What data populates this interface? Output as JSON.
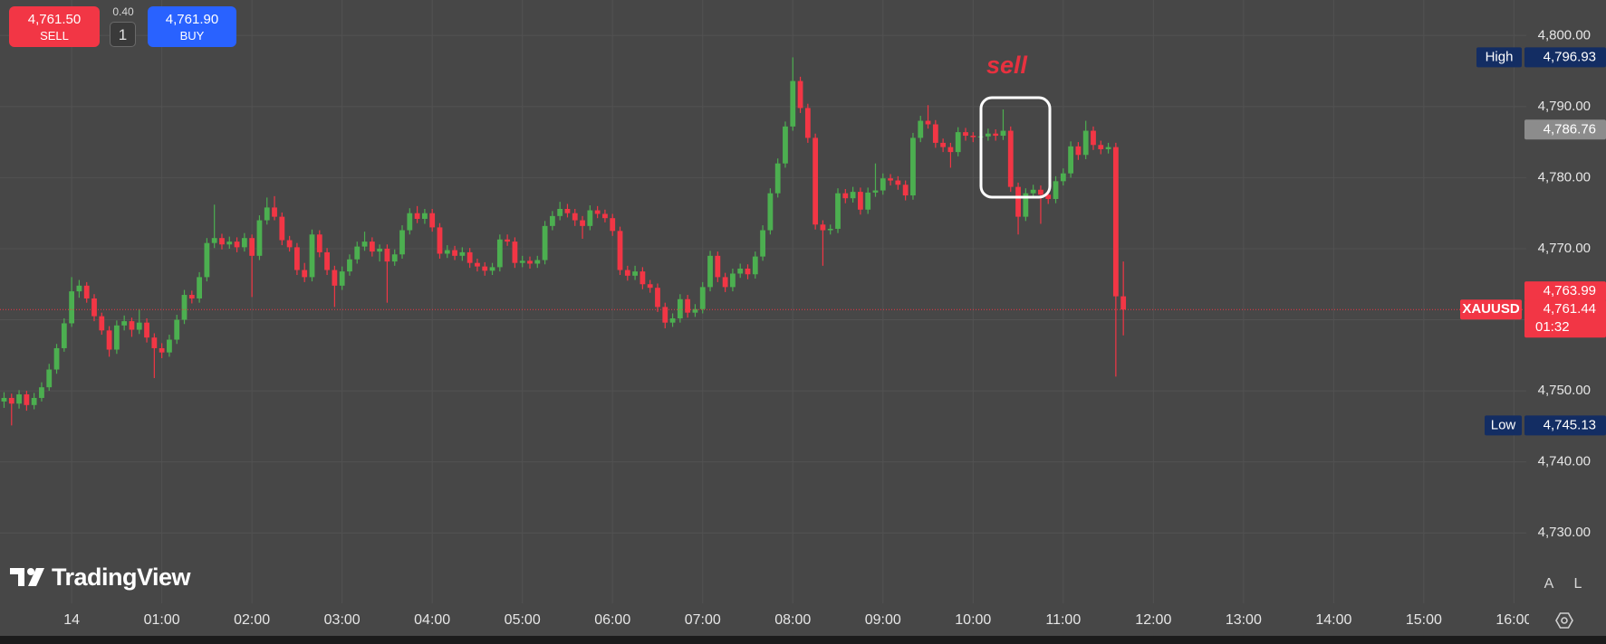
{
  "chart_data": {
    "type": "candlestick",
    "symbol": "XAUUSD",
    "annotation": "sell",
    "up_color": "#4caf50",
    "down_color": "#f23645",
    "grid": true,
    "xlim": [
      -47.7,
      968.2
    ],
    "xticks": [
      {
        "value": 0,
        "label": "14"
      },
      {
        "value": 60,
        "label": "01:00"
      },
      {
        "value": 120,
        "label": "02:00"
      },
      {
        "value": 180,
        "label": "03:00"
      },
      {
        "value": 240,
        "label": "04:00"
      },
      {
        "value": 300,
        "label": "05:00"
      },
      {
        "value": 360,
        "label": "06:00"
      },
      {
        "value": 420,
        "label": "07:00"
      },
      {
        "value": 480,
        "label": "08:00"
      },
      {
        "value": 540,
        "label": "09:00"
      },
      {
        "value": 600,
        "label": "10:00"
      },
      {
        "value": 660,
        "label": "11:00"
      },
      {
        "value": 720,
        "label": "12:00"
      },
      {
        "value": 780,
        "label": "13:00"
      },
      {
        "value": 840,
        "label": "14:00"
      },
      {
        "value": 900,
        "label": "15:00"
      },
      {
        "value": 960,
        "label": "16:00"
      }
    ],
    "ylim": [
      4720.1,
      4805.0
    ],
    "yticks": [
      {
        "value": 4730,
        "label": "4,730.00"
      },
      {
        "value": 4740,
        "label": "4,740.00"
      },
      {
        "value": 4750,
        "label": "4,750.00"
      },
      {
        "value": 4760,
        "label": "4,760.00"
      },
      {
        "value": 4770,
        "label": "4,770.00"
      },
      {
        "value": 4780,
        "label": "4,780.00"
      },
      {
        "value": 4790,
        "label": "4,790.00"
      },
      {
        "value": 4800,
        "label": "4,800.00"
      }
    ],
    "x": [
      -45,
      -40,
      -35,
      -30,
      -25,
      -20,
      -15,
      -10,
      -5,
      0,
      5,
      10,
      15,
      20,
      25,
      30,
      35,
      40,
      45,
      50,
      55,
      60,
      65,
      70,
      75,
      80,
      85,
      90,
      95,
      100,
      105,
      110,
      115,
      120,
      125,
      130,
      135,
      140,
      145,
      150,
      155,
      160,
      165,
      170,
      175,
      180,
      185,
      190,
      195,
      200,
      205,
      210,
      215,
      220,
      225,
      230,
      235,
      240,
      245,
      250,
      255,
      260,
      265,
      270,
      275,
      280,
      285,
      290,
      295,
      300,
      305,
      310,
      315,
      320,
      325,
      330,
      335,
      340,
      345,
      350,
      355,
      360,
      365,
      370,
      375,
      380,
      385,
      390,
      395,
      400,
      405,
      410,
      415,
      420,
      425,
      430,
      435,
      440,
      445,
      450,
      455,
      460,
      465,
      470,
      475,
      480,
      485,
      490,
      495,
      500,
      505,
      510,
      515,
      520,
      525,
      530,
      535,
      540,
      545,
      550,
      555,
      560,
      565,
      570,
      575,
      580,
      585,
      590,
      595,
      600,
      605,
      610,
      615,
      620,
      625,
      630,
      635,
      640,
      645,
      650,
      655,
      660,
      665,
      670,
      675,
      680,
      685,
      690,
      695,
      700
    ],
    "candles": [
      [
        4748.5,
        4749.8,
        4747.6,
        4749.0
      ],
      [
        4749.0,
        4749.6,
        4745.13,
        4748.2
      ],
      [
        4748.2,
        4750.1,
        4747.5,
        4749.5
      ],
      [
        4749.5,
        4750.0,
        4747.2,
        4748.0
      ],
      [
        4748.0,
        4749.7,
        4747.4,
        4749.0
      ],
      [
        4749.0,
        4751.2,
        4748.5,
        4750.5
      ],
      [
        4750.5,
        4753.8,
        4750.0,
        4753.0
      ],
      [
        4753.0,
        4756.6,
        4752.4,
        4756.0
      ],
      [
        4756.0,
        4760.2,
        4755.5,
        4759.5
      ],
      [
        4759.5,
        4766.0,
        4759.0,
        4764.0
      ],
      [
        4764.0,
        4765.6,
        4763.1,
        4764.8
      ],
      [
        4764.8,
        4765.3,
        4762.4,
        4763.0
      ],
      [
        4763.0,
        4763.6,
        4759.8,
        4760.5
      ],
      [
        4760.5,
        4761.0,
        4757.9,
        4758.5
      ],
      [
        4758.5,
        4759.1,
        4754.8,
        4755.8
      ],
      [
        4755.8,
        4759.9,
        4755.2,
        4759.2
      ],
      [
        4759.2,
        4760.6,
        4758.5,
        4759.8
      ],
      [
        4759.8,
        4760.3,
        4757.6,
        4758.6
      ],
      [
        4758.6,
        4761.5,
        4758.0,
        4759.6
      ],
      [
        4759.6,
        4760.2,
        4756.8,
        4757.5
      ],
      [
        4757.5,
        4758.1,
        4751.8,
        4756.0
      ],
      [
        4756.0,
        4756.7,
        4754.6,
        4755.4
      ],
      [
        4755.4,
        4757.9,
        4754.8,
        4757.2
      ],
      [
        4757.2,
        4760.7,
        4756.6,
        4760.0
      ],
      [
        4760.0,
        4764.2,
        4759.4,
        4763.5
      ],
      [
        4763.5,
        4764.1,
        4762.3,
        4763.0
      ],
      [
        4763.0,
        4766.7,
        4762.4,
        4766.0
      ],
      [
        4766.0,
        4771.5,
        4765.4,
        4770.8
      ],
      [
        4770.8,
        4776.2,
        4770.1,
        4771.5
      ],
      [
        4771.5,
        4772.1,
        4769.9,
        4770.6
      ],
      [
        4770.6,
        4771.7,
        4770.0,
        4771.0
      ],
      [
        4771.0,
        4771.6,
        4769.5,
        4770.2
      ],
      [
        4770.2,
        4772.2,
        4769.6,
        4771.5
      ],
      [
        4771.5,
        4772.0,
        4763.2,
        4769.0
      ],
      [
        4769.0,
        4774.7,
        4768.4,
        4774.0
      ],
      [
        4774.0,
        4777.2,
        4773.4,
        4775.8
      ],
      [
        4775.8,
        4777.4,
        4774.0,
        4774.5
      ],
      [
        4774.5,
        4775.1,
        4770.5,
        4771.2
      ],
      [
        4771.2,
        4771.8,
        4769.6,
        4770.2
      ],
      [
        4770.2,
        4770.8,
        4766.3,
        4767.0
      ],
      [
        4767.0,
        4768.0,
        4765.3,
        4766.0
      ],
      [
        4766.0,
        4772.7,
        4765.4,
        4772.0
      ],
      [
        4772.0,
        4772.6,
        4768.8,
        4769.5
      ],
      [
        4769.5,
        4770.1,
        4766.3,
        4767.0
      ],
      [
        4767.0,
        4767.6,
        4761.8,
        4764.8
      ],
      [
        4764.8,
        4767.5,
        4764.2,
        4766.8
      ],
      [
        4766.8,
        4769.2,
        4766.2,
        4768.5
      ],
      [
        4768.5,
        4771.0,
        4767.9,
        4770.3
      ],
      [
        4770.3,
        4772.4,
        4769.7,
        4771.0
      ],
      [
        4771.0,
        4771.6,
        4768.9,
        4769.6
      ],
      [
        4769.6,
        4770.6,
        4768.2,
        4770.0
      ],
      [
        4770.0,
        4770.6,
        4762.4,
        4768.2
      ],
      [
        4768.2,
        4769.9,
        4767.6,
        4769.2
      ],
      [
        4769.2,
        4773.3,
        4768.6,
        4772.6
      ],
      [
        4772.6,
        4775.7,
        4772.0,
        4775.0
      ],
      [
        4775.0,
        4776.0,
        4773.6,
        4774.2
      ],
      [
        4774.2,
        4775.6,
        4773.5,
        4775.0
      ],
      [
        4775.0,
        4775.6,
        4772.4,
        4773.0
      ],
      [
        4773.0,
        4773.6,
        4768.6,
        4769.3
      ],
      [
        4769.3,
        4770.5,
        4768.7,
        4769.8
      ],
      [
        4769.8,
        4770.4,
        4768.4,
        4769.0
      ],
      [
        4769.0,
        4770.2,
        4768.3,
        4769.5
      ],
      [
        4769.5,
        4770.1,
        4767.3,
        4768.0
      ],
      [
        4768.0,
        4768.6,
        4766.8,
        4767.5
      ],
      [
        4767.5,
        4768.1,
        4766.2,
        4766.9
      ],
      [
        4766.9,
        4768.0,
        4766.3,
        4767.4
      ],
      [
        4767.4,
        4772.0,
        4766.8,
        4771.3
      ],
      [
        4771.3,
        4772.0,
        4770.4,
        4771.0
      ],
      [
        4771.0,
        4771.6,
        4767.3,
        4768.0
      ],
      [
        4768.0,
        4769.0,
        4767.4,
        4768.3
      ],
      [
        4768.3,
        4768.9,
        4767.2,
        4767.9
      ],
      [
        4767.9,
        4769.0,
        4767.3,
        4768.4
      ],
      [
        4768.4,
        4773.9,
        4767.8,
        4773.2
      ],
      [
        4773.2,
        4775.3,
        4772.6,
        4774.6
      ],
      [
        4774.6,
        4776.6,
        4774.0,
        4775.6
      ],
      [
        4775.6,
        4776.3,
        4774.4,
        4775.0
      ],
      [
        4775.0,
        4775.6,
        4773.2,
        4774.0
      ],
      [
        4774.0,
        4774.6,
        4771.4,
        4773.2
      ],
      [
        4773.2,
        4776.1,
        4772.6,
        4775.4
      ],
      [
        4775.4,
        4776.0,
        4774.3,
        4774.9
      ],
      [
        4774.9,
        4775.5,
        4773.7,
        4774.3
      ],
      [
        4774.3,
        4774.9,
        4771.8,
        4772.5
      ],
      [
        4772.5,
        4773.1,
        4766.3,
        4767.0
      ],
      [
        4767.0,
        4767.6,
        4765.5,
        4766.2
      ],
      [
        4766.2,
        4767.6,
        4765.6,
        4766.8
      ],
      [
        4766.8,
        4767.4,
        4764.3,
        4765.0
      ],
      [
        4765.0,
        4765.6,
        4763.8,
        4764.5
      ],
      [
        4764.5,
        4765.1,
        4761.1,
        4761.8
      ],
      [
        4761.8,
        4762.4,
        4758.8,
        4759.6
      ],
      [
        4759.6,
        4760.9,
        4759.0,
        4760.2
      ],
      [
        4760.2,
        4763.6,
        4759.6,
        4762.9
      ],
      [
        4762.9,
        4763.5,
        4760.3,
        4761.0
      ],
      [
        4761.0,
        4762.2,
        4760.4,
        4761.5
      ],
      [
        4761.5,
        4765.3,
        4760.9,
        4764.6
      ],
      [
        4764.6,
        4769.7,
        4764.0,
        4769.0
      ],
      [
        4769.0,
        4769.6,
        4765.3,
        4766.0
      ],
      [
        4766.0,
        4766.6,
        4763.9,
        4764.6
      ],
      [
        4764.6,
        4767.2,
        4764.0,
        4766.5
      ],
      [
        4766.5,
        4767.9,
        4765.9,
        4767.2
      ],
      [
        4767.2,
        4767.8,
        4765.7,
        4766.4
      ],
      [
        4766.4,
        4769.6,
        4765.8,
        4768.9
      ],
      [
        4768.9,
        4773.3,
        4768.3,
        4772.6
      ],
      [
        4772.6,
        4778.5,
        4772.0,
        4777.8
      ],
      [
        4777.8,
        4782.7,
        4777.2,
        4782.0
      ],
      [
        4782.0,
        4787.9,
        4781.4,
        4787.2
      ],
      [
        4787.2,
        4796.93,
        4786.6,
        4793.6
      ],
      [
        4793.6,
        4794.2,
        4789.1,
        4789.8
      ],
      [
        4789.8,
        4790.4,
        4784.9,
        4785.6
      ],
      [
        4785.6,
        4786.2,
        4772.7,
        4773.4
      ],
      [
        4773.4,
        4774.0,
        4767.6,
        4772.6
      ],
      [
        4772.6,
        4773.4,
        4772.0,
        4772.8
      ],
      [
        4772.8,
        4778.5,
        4772.2,
        4777.8
      ],
      [
        4777.8,
        4778.4,
        4776.4,
        4777.1
      ],
      [
        4777.1,
        4778.7,
        4776.5,
        4778.0
      ],
      [
        4778.0,
        4778.6,
        4774.8,
        4775.5
      ],
      [
        4775.5,
        4778.6,
        4774.9,
        4777.9
      ],
      [
        4777.9,
        4782.0,
        4777.3,
        4778.2
      ],
      [
        4778.2,
        4780.6,
        4777.6,
        4779.9
      ],
      [
        4779.9,
        4780.5,
        4778.9,
        4779.6
      ],
      [
        4779.6,
        4780.2,
        4778.3,
        4779.0
      ],
      [
        4779.0,
        4779.6,
        4776.8,
        4777.5
      ],
      [
        4777.5,
        4786.3,
        4776.9,
        4785.6
      ],
      [
        4785.6,
        4788.7,
        4785.0,
        4788.0
      ],
      [
        4788.0,
        4790.2,
        4786.9,
        4787.5
      ],
      [
        4787.5,
        4788.1,
        4784.2,
        4784.9
      ],
      [
        4784.9,
        4785.5,
        4783.6,
        4784.3
      ],
      [
        4784.3,
        4784.9,
        4781.4,
        4783.6
      ],
      [
        4783.6,
        4787.1,
        4783.0,
        4786.4
      ],
      [
        4786.4,
        4787.0,
        4785.2,
        4785.9
      ],
      [
        4785.9,
        4786.4,
        4785.0,
        4785.7
      ],
      [
        4785.7,
        4786.5,
        4785.1,
        4785.8
      ],
      [
        4785.8,
        4786.9,
        4785.2,
        4786.2
      ],
      [
        4786.2,
        4786.8,
        4785.2,
        4785.9
      ],
      [
        4785.9,
        4789.6,
        4785.3,
        4786.6
      ],
      [
        4786.6,
        4787.2,
        4778.0,
        4778.7
      ],
      [
        4778.7,
        4779.3,
        4772.0,
        4774.5
      ],
      [
        4774.5,
        4778.5,
        4773.9,
        4777.8
      ],
      [
        4777.8,
        4779.0,
        4777.2,
        4778.3
      ],
      [
        4778.3,
        4778.9,
        4773.5,
        4777.6
      ],
      [
        4777.6,
        4778.2,
        4776.3,
        4777.0
      ],
      [
        4777.0,
        4780.2,
        4776.4,
        4779.5
      ],
      [
        4779.5,
        4781.3,
        4778.9,
        4780.6
      ],
      [
        4780.6,
        4785.1,
        4780.0,
        4784.4
      ],
      [
        4784.4,
        4785.0,
        4782.5,
        4783.2
      ],
      [
        4783.2,
        4788.0,
        4782.6,
        4786.6
      ],
      [
        4786.6,
        4787.2,
        4783.9,
        4784.6
      ],
      [
        4784.6,
        4785.2,
        4783.3,
        4784.0
      ],
      [
        4784.0,
        4784.9,
        4783.4,
        4784.3
      ],
      [
        4784.3,
        4784.9,
        4752.0,
        4763.3
      ],
      [
        4763.3,
        4768.2,
        4757.8,
        4761.44
      ]
    ],
    "markers": [
      {
        "name": "High",
        "value": 4796.93,
        "value_label": "4,796.93",
        "color": "#132d63"
      },
      {
        "value": 4786.76,
        "value_label": "4,786.76",
        "color": "#8c8c8c"
      },
      {
        "value": 4763.99,
        "value_label": "4,763.99",
        "color": "#f23645"
      },
      {
        "name": "XAUUSD",
        "value": 4761.44,
        "value_label": "4,761.44",
        "countdown": "01:32",
        "color": "#f23645"
      },
      {
        "name": "Low",
        "value": 4745.13,
        "value_label": "4,745.13",
        "color": "#132d63"
      }
    ]
  },
  "trade_panel": {
    "sell_price": "4,761.50",
    "sell_label": "SELL",
    "spread": "0.40",
    "quantity": "1",
    "buy_price": "4,761.90",
    "buy_label": "BUY"
  },
  "branding": {
    "logo": "TradingView"
  },
  "axis_buttons": {
    "auto": "A",
    "log": "L"
  }
}
